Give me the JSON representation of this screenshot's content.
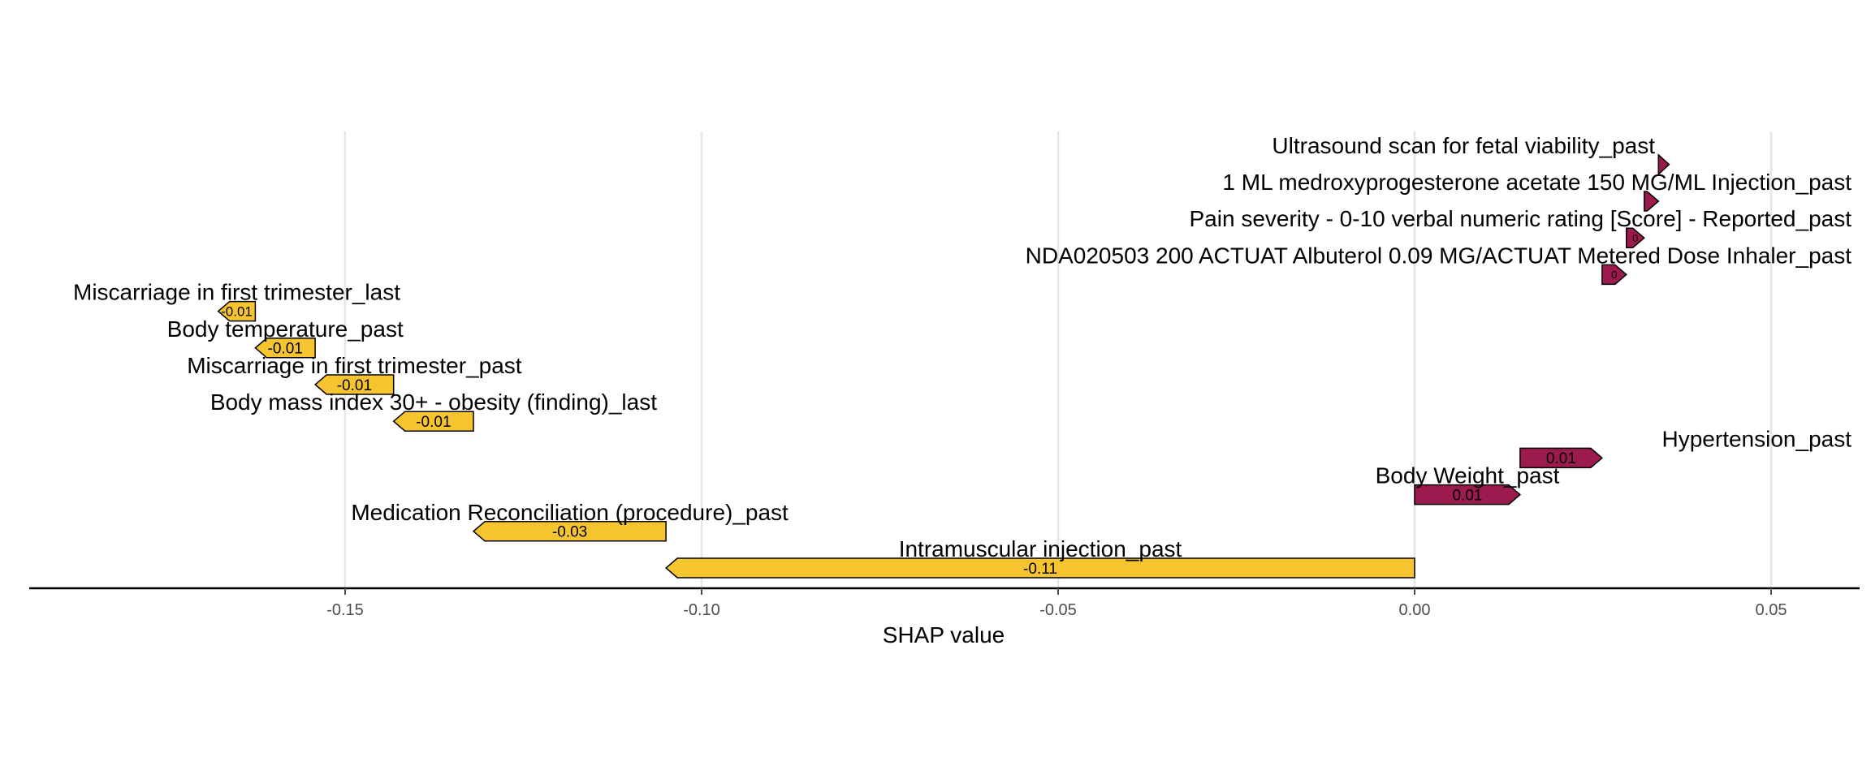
{
  "chart_data": {
    "type": "bar",
    "subtype": "shap-waterfall-arrows",
    "xlabel": "SHAP value",
    "xlim": [
      -0.195,
      0.062
    ],
    "xticks": [
      -0.15,
      -0.1,
      -0.05,
      0.0,
      0.05
    ],
    "xtick_labels": [
      "-0.15",
      "-0.10",
      "-0.05",
      "0.00",
      "0.05"
    ],
    "grid": "vertical major gridlines",
    "colors": {
      "negative": "#F5C42F",
      "positive": "#9B1B4E"
    },
    "features": [
      {
        "name": "Intramuscular injection_past",
        "start": 0.0,
        "end": -0.105,
        "label": "-0.11"
      },
      {
        "name": "Medication Reconciliation (procedure)_past",
        "start": -0.105,
        "end": -0.132,
        "label": "-0.03"
      },
      {
        "name": "Body Weight_past",
        "start": 0.0,
        "end": 0.0148,
        "label": "0.01"
      },
      {
        "name": "Hypertension_past",
        "start": 0.0148,
        "end": 0.0263,
        "label": "0.01"
      },
      {
        "name": "Body mass index 30+ - obesity (finding)_last",
        "start": -0.132,
        "end": -0.1432,
        "label": "-0.01"
      },
      {
        "name": "Miscarriage in first trimester_past",
        "start": -0.1432,
        "end": -0.1542,
        "label": "-0.01"
      },
      {
        "name": "Body temperature_past",
        "start": -0.1542,
        "end": -0.1626,
        "label": "-0.01"
      },
      {
        "name": "Miscarriage in first trimester_last",
        "start": -0.1626,
        "end": -0.1678,
        "label": "-0.01"
      },
      {
        "name": "NDA020503 200 ACTUAT Albuterol 0.09 MG/ACTUAT Metered Dose Inhaler_past",
        "start": 0.0263,
        "end": 0.0297,
        "label": "0"
      },
      {
        "name": "Pain severity - 0-10 verbal numeric rating [Score] - Reported_past",
        "start": 0.0297,
        "end": 0.0322,
        "label": "0"
      },
      {
        "name": "1 ML medroxyprogesterone acetate 150 MG/ML Injection_past",
        "start": 0.0322,
        "end": 0.0342,
        "label": ""
      },
      {
        "name": "Ultrasound scan for fetal viability_past",
        "start": 0.0342,
        "end": 0.0357,
        "label": ""
      }
    ]
  }
}
